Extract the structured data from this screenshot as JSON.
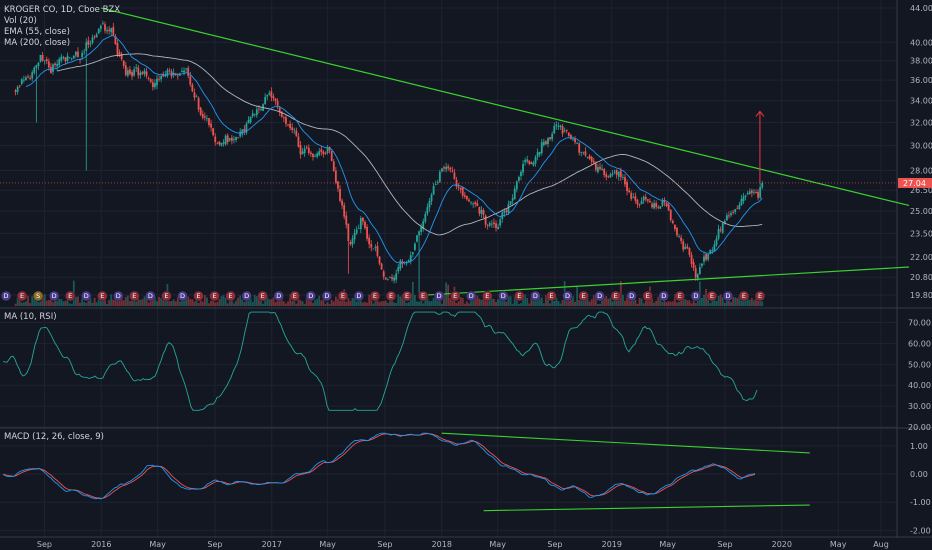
{
  "chart_data": [
    {
      "type": "candlestick",
      "title": "KROGER CO, 1D, Cboe BZX",
      "legend": [
        "Vol (20)",
        "EMA (55, close)",
        "MA (200, close)"
      ],
      "x_ticks": [
        "Sep",
        "2016",
        "May",
        "Sep",
        "2017",
        "May",
        "Sep",
        "2018",
        "May",
        "Sep",
        "2019",
        "May",
        "Sep",
        "2020",
        "May",
        "Aug"
      ],
      "y_ticks": [
        "44.00",
        "40.00",
        "38.00",
        "36.00",
        "34.00",
        "32.00",
        "30.00",
        "28.00",
        "26.50",
        "25.00",
        "23.50",
        "22.00",
        "20.80",
        "19.80"
      ],
      "last_price": "27.04",
      "y_range": [
        19.2,
        44.5
      ],
      "scale": "log",
      "approx_close_path": [
        [
          "2015-07-01",
          35.0
        ],
        [
          "2015-09-01",
          37.5
        ],
        [
          "2015-11-01",
          37.0
        ],
        [
          "2016-01-01",
          42.0
        ],
        [
          "2016-03-01",
          38.0
        ],
        [
          "2016-05-01",
          36.0
        ],
        [
          "2016-07-01",
          37.0
        ],
        [
          "2016-09-01",
          30.5
        ],
        [
          "2016-11-01",
          31.5
        ],
        [
          "2017-01-01",
          34.5
        ],
        [
          "2017-03-01",
          30.0
        ],
        [
          "2017-05-01",
          29.5
        ],
        [
          "2017-06-15",
          23.0
        ],
        [
          "2017-07-15",
          25.0
        ],
        [
          "2017-09-01",
          20.5
        ],
        [
          "2017-11-01",
          22.5
        ],
        [
          "2018-01-01",
          28.0
        ],
        [
          "2018-03-01",
          25.0
        ],
        [
          "2018-05-01",
          24.0
        ],
        [
          "2018-07-01",
          29.0
        ],
        [
          "2018-09-01",
          31.5
        ],
        [
          "2018-11-01",
          29.5
        ],
        [
          "2019-01-01",
          28.0
        ],
        [
          "2019-03-01",
          25.0
        ],
        [
          "2019-05-01",
          25.5
        ],
        [
          "2019-07-01",
          21.0
        ],
        [
          "2019-09-01",
          24.0
        ],
        [
          "2019-11-01",
          27.04
        ]
      ],
      "trendlines": [
        {
          "label": "upper",
          "from": [
            "2016-01-01",
            44.0
          ],
          "to": [
            "2020-09-30",
            25.4
          ],
          "color": "#3bd12f"
        },
        {
          "label": "lower",
          "from": [
            "2017-12-01",
            19.8
          ],
          "to": [
            "2020-09-30",
            21.4
          ],
          "color": "#3bd12f"
        }
      ],
      "projection_arrow": {
        "from": [
          "2019-11-15",
          27.04
        ],
        "to": [
          "2019-11-15",
          33.0
        ],
        "color": "#f23645"
      },
      "events": [
        "D",
        "E",
        "S",
        "D",
        "E",
        "D",
        "E",
        "D",
        "E",
        "D",
        "E",
        "D",
        "E",
        "E",
        "E",
        "D",
        "E",
        "D",
        "E",
        "D",
        "D",
        "E",
        "D",
        "E",
        "E",
        "E",
        "E",
        "D",
        "E",
        "D",
        "E",
        "D",
        "E",
        "D",
        "E",
        "D",
        "E",
        "D",
        "E",
        "D",
        "E",
        "D",
        "E",
        "D",
        "E",
        "D",
        "E",
        "E"
      ],
      "colors": {
        "up": "#26a69a",
        "down": "#ef5350",
        "ema55": "#2196f3",
        "ma200": "#b2b5be",
        "background": "#131722",
        "last_price": "#ef5350"
      }
    },
    {
      "type": "line",
      "title": "MA (10, RSI)",
      "y_ticks": [
        "70.00",
        "60.00",
        "50.00",
        "40.00",
        "30.00",
        "20.00"
      ],
      "y_range": [
        20,
        76
      ],
      "color": "#26a69a"
    },
    {
      "type": "line",
      "title": "MACD (12, 26, close, 9)",
      "y_ticks": [
        "1.00",
        "0.00",
        "-1.00",
        "-2.00"
      ],
      "y_range": [
        -2.2,
        1.6
      ],
      "series": [
        {
          "color": "#2196f3"
        },
        {
          "color": "#ef5350"
        }
      ],
      "trendlines": [
        {
          "label": "upper",
          "from": [
            "2018-01-01",
            1.45
          ],
          "to": [
            "2020-03-01",
            0.75
          ],
          "color": "#3bd12f"
        },
        {
          "label": "lower",
          "from": [
            "2018-04-01",
            -1.3
          ],
          "to": [
            "2020-03-01",
            -1.1
          ],
          "color": "#3bd12f"
        }
      ]
    }
  ]
}
